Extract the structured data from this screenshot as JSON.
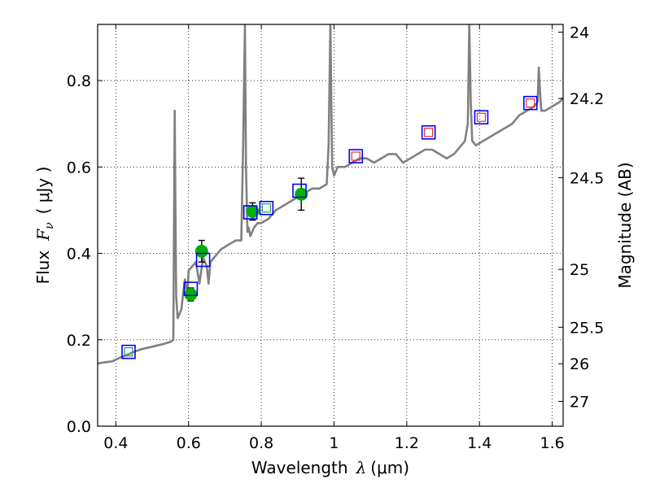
{
  "chart_data": {
    "type": "scatter",
    "title": "",
    "xlabel": {
      "prefix": "Wavelength",
      "symbol": "λ",
      "unit": "(μm)"
    },
    "ylabel": {
      "prefix": "Flux",
      "symbol": "F",
      "subscript": "ν",
      "unit": "( μJy )"
    },
    "ylabel_right": "Magnitude (AB)",
    "xlim": [
      0.35,
      1.63
    ],
    "ylim": [
      0.0,
      0.93
    ],
    "grid": true,
    "x_ticks": [
      {
        "value": 0.4,
        "label": "0.4"
      },
      {
        "value": 0.6,
        "label": "0.6"
      },
      {
        "value": 0.8,
        "label": "0.8"
      },
      {
        "value": 1.0,
        "label": "1"
      },
      {
        "value": 1.2,
        "label": "1.2"
      },
      {
        "value": 1.4,
        "label": "1.4"
      },
      {
        "value": 1.6,
        "label": "1.6"
      }
    ],
    "y_ticks": [
      {
        "value": 0.0,
        "label": "0.0"
      },
      {
        "value": 0.2,
        "label": "0.2"
      },
      {
        "value": 0.4,
        "label": "0.4"
      },
      {
        "value": 0.6,
        "label": "0.6"
      },
      {
        "value": 0.8,
        "label": "0.8"
      }
    ],
    "right_ticks": [
      {
        "value": 24.0,
        "label": "24"
      },
      {
        "value": 24.2,
        "label": "24.2"
      },
      {
        "value": 24.5,
        "label": "24.5"
      },
      {
        "value": 25.0,
        "label": "25"
      },
      {
        "value": 25.5,
        "label": "25.5"
      },
      {
        "value": 26.0,
        "label": "26"
      },
      {
        "value": 27.0,
        "label": "27"
      }
    ],
    "series": [
      {
        "name": "model-spectrum",
        "kind": "line",
        "color": "#808080",
        "x": [
          0.35,
          0.37,
          0.39,
          0.41,
          0.43,
          0.45,
          0.47,
          0.49,
          0.51,
          0.53,
          0.55,
          0.558,
          0.562,
          0.564,
          0.566,
          0.57,
          0.58,
          0.59,
          0.597,
          0.6,
          0.61,
          0.62,
          0.63,
          0.64,
          0.65,
          0.655,
          0.66,
          0.67,
          0.69,
          0.71,
          0.73,
          0.745,
          0.75,
          0.755,
          0.758,
          0.762,
          0.765,
          0.77,
          0.78,
          0.79,
          0.8,
          0.82,
          0.84,
          0.86,
          0.88,
          0.9,
          0.92,
          0.94,
          0.96,
          0.98,
          0.985,
          0.99,
          0.995,
          1.0,
          1.005,
          1.01,
          1.03,
          1.05,
          1.07,
          1.09,
          1.11,
          1.13,
          1.15,
          1.17,
          1.19,
          1.21,
          1.23,
          1.25,
          1.27,
          1.29,
          1.31,
          1.33,
          1.35,
          1.36,
          1.368,
          1.372,
          1.376,
          1.38,
          1.39,
          1.41,
          1.43,
          1.45,
          1.47,
          1.49,
          1.51,
          1.53,
          1.55,
          1.56,
          1.563,
          1.566,
          1.57,
          1.58,
          1.6,
          1.62,
          1.63
        ],
        "y": [
          0.145,
          0.148,
          0.15,
          0.158,
          0.165,
          0.172,
          0.178,
          0.182,
          0.186,
          0.19,
          0.195,
          0.2,
          0.73,
          0.5,
          0.3,
          0.25,
          0.27,
          0.34,
          0.3,
          0.36,
          0.37,
          0.38,
          0.33,
          0.39,
          0.37,
          0.33,
          0.38,
          0.39,
          0.41,
          0.42,
          0.43,
          0.43,
          0.65,
          0.93,
          0.6,
          0.45,
          0.46,
          0.44,
          0.46,
          0.47,
          0.47,
          0.48,
          0.5,
          0.51,
          0.52,
          0.53,
          0.54,
          0.55,
          0.55,
          0.56,
          0.65,
          0.93,
          0.6,
          0.58,
          0.59,
          0.6,
          0.6,
          0.61,
          0.62,
          0.62,
          0.61,
          0.62,
          0.63,
          0.63,
          0.61,
          0.62,
          0.63,
          0.64,
          0.64,
          0.63,
          0.62,
          0.63,
          0.65,
          0.66,
          0.7,
          0.93,
          0.75,
          0.66,
          0.65,
          0.66,
          0.67,
          0.68,
          0.69,
          0.7,
          0.72,
          0.73,
          0.74,
          0.75,
          0.83,
          0.78,
          0.73,
          0.73,
          0.74,
          0.75,
          0.76
        ]
      },
      {
        "name": "measured-flux",
        "kind": "points-with-error",
        "color": "#00b000",
        "x": [
          0.606,
          0.636,
          0.776,
          0.91
        ],
        "y": [
          0.305,
          0.405,
          0.497,
          0.537
        ],
        "yerr": [
          0.015,
          0.025,
          0.02,
          0.037
        ]
      },
      {
        "name": "model-photometry",
        "kind": "square",
        "color": "#0000ff",
        "x": [
          0.435,
          0.606,
          0.64,
          0.77,
          0.814,
          0.905,
          1.06,
          1.26,
          1.405,
          1.54
        ],
        "y": [
          0.172,
          0.318,
          0.385,
          0.495,
          0.505,
          0.545,
          0.625,
          0.68,
          0.715,
          0.748
        ]
      },
      {
        "name": "green-band-markers",
        "kind": "inner-square",
        "color": "#20a060",
        "x": [
          0.435,
          0.814
        ],
        "y": [
          0.172,
          0.505
        ]
      },
      {
        "name": "red-band-markers",
        "kind": "inner-square",
        "color": "#e03030",
        "x": [
          1.06,
          1.26,
          1.405,
          1.54
        ],
        "y": [
          0.625,
          0.68,
          0.715,
          0.748
        ]
      }
    ]
  }
}
